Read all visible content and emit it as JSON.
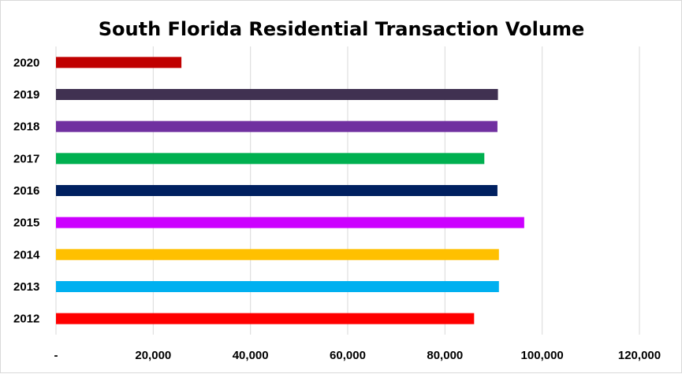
{
  "chart_data": {
    "type": "bar",
    "orientation": "horizontal",
    "title": "South Florida Residential Transaction Volume",
    "xlabel": "",
    "ylabel": "",
    "categories": [
      "2020",
      "2019",
      "2018",
      "2017",
      "2016",
      "2015",
      "2014",
      "2013",
      "2012"
    ],
    "values": [
      25800,
      90900,
      90800,
      88100,
      90800,
      96300,
      91100,
      91100,
      86000
    ],
    "colors": [
      "#c00000",
      "#403151",
      "#7030a0",
      "#00b050",
      "#002060",
      "#cc00ff",
      "#ffc000",
      "#00b0f0",
      "#ff0000"
    ],
    "xlim": [
      0,
      120000
    ],
    "ticks": [
      0,
      20000,
      40000,
      60000,
      80000,
      100000,
      120000
    ],
    "tick_labels": [
      "-",
      "20,000",
      "40,000",
      "60,000",
      "80,000",
      "100,000",
      "120,000"
    ],
    "grid": true,
    "legend": "none"
  }
}
